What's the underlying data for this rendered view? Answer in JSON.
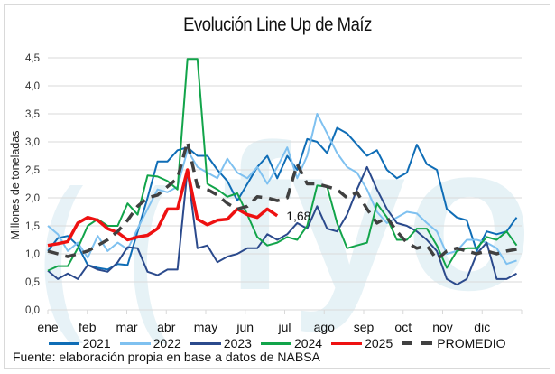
{
  "chart_data": {
    "type": "line",
    "title": "Evolución Line Up de Maíz",
    "xlabel": "",
    "ylabel": "Millones de toneladas",
    "ylim": [
      0,
      4.5
    ],
    "yticks": [
      "0,0",
      "0,5",
      "1,0",
      "1,5",
      "2,0",
      "2,5",
      "3,0",
      "3,5",
      "4,0",
      "4,5"
    ],
    "categories": [
      "ene",
      "feb",
      "mar",
      "abr",
      "may",
      "jun",
      "jul",
      "ago",
      "sep",
      "oct",
      "nov",
      "dic"
    ],
    "grid": true,
    "legend_position": "bottom",
    "annotation": {
      "text": "1,68",
      "series": "2025"
    },
    "series": [
      {
        "name": "2021",
        "color": "#0f6db6",
        "width": 2,
        "dash": false,
        "values": [
          1.05,
          1.28,
          1.32,
          1.15,
          0.8,
          0.75,
          0.72,
          0.82,
          0.8,
          1.4,
          2.0,
          2.65,
          2.65,
          2.85,
          2.9,
          2.75,
          2.75,
          2.5,
          2.3,
          1.95,
          2.25,
          2.55,
          2.75,
          2.35,
          2.75,
          2.5,
          3.05,
          3.0,
          2.8,
          3.25,
          3.15,
          2.95,
          2.75,
          2.85,
          2.5,
          2.35,
          2.45,
          2.95,
          2.6,
          2.5,
          1.8,
          1.65,
          1.6,
          1.05,
          1.4,
          1.35,
          1.4,
          1.65,
          1.5,
          1.5
        ]
      },
      {
        "name": "2022",
        "color": "#7fc1f0",
        "width": 2,
        "dash": false,
        "values": [
          1.5,
          1.35,
          1.05,
          1.2,
          0.93,
          1.32,
          1.05,
          1.2,
          1.08,
          1.45,
          1.8,
          2.15,
          2.1,
          2.2,
          2.85,
          2.55,
          2.45,
          2.35,
          2.7,
          2.45,
          2.35,
          2.55,
          2.25,
          2.55,
          2.9,
          2.35,
          2.75,
          3.5,
          3.15,
          2.8,
          2.55,
          2.45,
          2.15,
          1.75,
          1.55,
          1.65,
          1.75,
          1.72,
          1.55,
          1.4,
          1.0,
          1.05,
          1.25,
          1.25,
          1.2,
          1.1,
          0.82,
          0.88,
          1.0
        ]
      },
      {
        "name": "2023",
        "color": "#2b4a8c",
        "width": 2,
        "dash": false,
        "values": [
          0.7,
          0.55,
          0.65,
          0.55,
          0.8,
          0.72,
          0.68,
          0.85,
          1.12,
          1.1,
          0.68,
          0.62,
          0.72,
          0.72,
          2.5,
          1.1,
          1.15,
          0.85,
          0.95,
          1.0,
          1.1,
          1.1,
          1.35,
          1.25,
          1.35,
          1.55,
          1.45,
          1.85,
          1.45,
          1.4,
          1.7,
          2.15,
          2.55,
          2.15,
          1.8,
          1.55,
          1.5,
          1.4,
          1.25,
          1.05,
          0.55,
          0.45,
          0.55,
          1.0,
          1.2,
          0.55,
          0.55,
          0.65,
          0.7,
          0.8,
          0.8
        ]
      },
      {
        "name": "2024",
        "color": "#12a44a",
        "width": 2,
        "dash": false,
        "values": [
          0.7,
          0.78,
          0.78,
          1.1,
          1.5,
          1.62,
          1.5,
          1.5,
          1.9,
          1.7,
          2.4,
          2.38,
          2.3,
          2.15,
          4.48,
          4.48,
          2.25,
          2.15,
          2.02,
          2.08,
          1.7,
          1.3,
          1.15,
          1.2,
          1.3,
          1.25,
          1.5,
          2.22,
          2.2,
          1.55,
          1.1,
          1.15,
          1.2,
          1.9,
          1.65,
          1.25,
          1.25,
          1.45,
          1.45,
          1.15,
          0.75,
          1.05,
          1.1,
          1.1,
          1.3,
          1.25,
          1.4,
          1.15,
          1.05,
          1.1,
          1.12
        ]
      },
      {
        "name": "2025",
        "color": "#ee1111",
        "width": 3.5,
        "dash": false,
        "values": [
          1.15,
          1.18,
          1.22,
          1.55,
          1.65,
          1.6,
          1.45,
          1.38,
          1.25,
          1.3,
          1.33,
          1.45,
          1.8,
          1.8,
          2.5,
          1.62,
          1.52,
          1.6,
          1.62,
          1.8,
          1.7,
          1.65,
          1.8,
          1.68
        ]
      },
      {
        "name": "PROMEDIO",
        "color": "#404040",
        "width": 3.5,
        "dash": true,
        "values": [
          1.05,
          1.0,
          0.95,
          1.0,
          1.05,
          1.15,
          1.25,
          1.4,
          1.6,
          1.85,
          2.0,
          2.05,
          2.2,
          2.35,
          3.0,
          2.2,
          2.15,
          2.05,
          1.9,
          1.8,
          1.85,
          2.02,
          2.0,
          1.95,
          2.0,
          2.6,
          2.25,
          2.25,
          2.2,
          2.15,
          2.0,
          2.1,
          1.8,
          1.55,
          1.65,
          1.4,
          1.2,
          1.1,
          1.15,
          0.9,
          1.05,
          1.1,
          1.05,
          1.0,
          1.05,
          1.0,
          1.05,
          1.08
        ]
      }
    ]
  },
  "source": "Fuente: elaboración propia en base a datos de NABSA"
}
